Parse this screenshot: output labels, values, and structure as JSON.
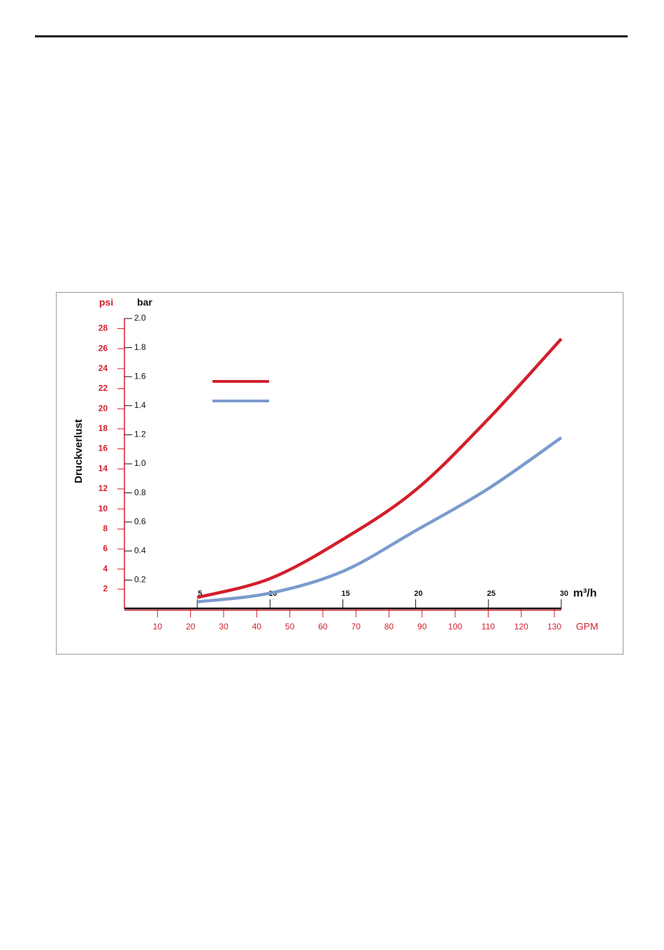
{
  "chart_data": {
    "type": "line",
    "ylabel": "Druckverlust",
    "yunit": "bar",
    "y2unit": "psi",
    "xunit": "m³/h",
    "x2unit": "GPM",
    "x": [
      5,
      10,
      15,
      20,
      25,
      30
    ],
    "series": [
      {
        "color": "#d21f2b",
        "values": [
          0.08,
          0.21,
          0.48,
          0.82,
          1.31,
          1.86
        ]
      },
      {
        "color": "#7b9bcd",
        "values": [
          0.05,
          0.11,
          0.26,
          0.54,
          0.83,
          1.18
        ]
      }
    ],
    "xlim": [
      0,
      30
    ],
    "xticks": [
      5,
      10,
      15,
      20,
      25,
      30
    ],
    "x2lim": [
      0,
      132.09
    ],
    "x2ticks": [
      10,
      20,
      30,
      40,
      50,
      60,
      70,
      80,
      90,
      100,
      110,
      120,
      130
    ],
    "ylim": [
      0,
      2.0
    ],
    "yticks": [
      {
        "value": 0.2,
        "label": "0.2"
      },
      {
        "value": 0.4,
        "label": "0.4"
      },
      {
        "value": 0.6,
        "label": "0.6"
      },
      {
        "value": 0.8,
        "label": "0.8"
      },
      {
        "value": 1.0,
        "label": "1.0"
      },
      {
        "value": 1.2,
        "label": "1.2"
      },
      {
        "value": 1.4,
        "label": "1.4"
      },
      {
        "value": 1.6,
        "label": "1.6"
      },
      {
        "value": 1.8,
        "label": "1.8"
      },
      {
        "value": 2.0,
        "label": "2.0"
      }
    ],
    "y2lim": [
      0,
      29.01
    ],
    "y2ticks": [
      2,
      4,
      6,
      8,
      10,
      12,
      14,
      16,
      18,
      20,
      22,
      24,
      26,
      28
    ]
  }
}
